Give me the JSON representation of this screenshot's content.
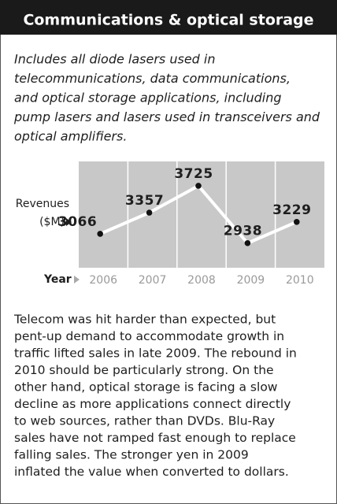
{
  "header": {
    "title": "Communications & optical storage"
  },
  "intro": [
    "Includes all diode lasers used in",
    "telecommunications, data communications,",
    "and optical storage applications, including",
    "pump lasers and lasers used in transceivers and",
    "optical amplifiers."
  ],
  "chart_data": {
    "type": "line",
    "y_label": [
      "Revenues",
      "($M)"
    ],
    "x_label": "Year",
    "categories": [
      "2006",
      "2007",
      "2008",
      "2009",
      "2010"
    ],
    "values": [
      3066,
      3357,
      3725,
      2938,
      3229
    ],
    "ylim": [
      2600,
      4060
    ],
    "color": "#ffffff",
    "grid": true
  },
  "body": [
    "Telecom was hit harder than expected, but",
    "pent-up demand to accommodate growth in",
    "traffic lifted sales in late 2009. The rebound in",
    "2010 should be particularly strong. On the",
    "other hand, optical storage is facing a slow",
    "decline as more applications connect directly",
    "to web sources, rather than DVDs. Blu-Ray",
    "sales have not ramped fast enough to replace",
    "falling sales. The stronger yen in 2009",
    "inflated the value when converted to dollars."
  ]
}
